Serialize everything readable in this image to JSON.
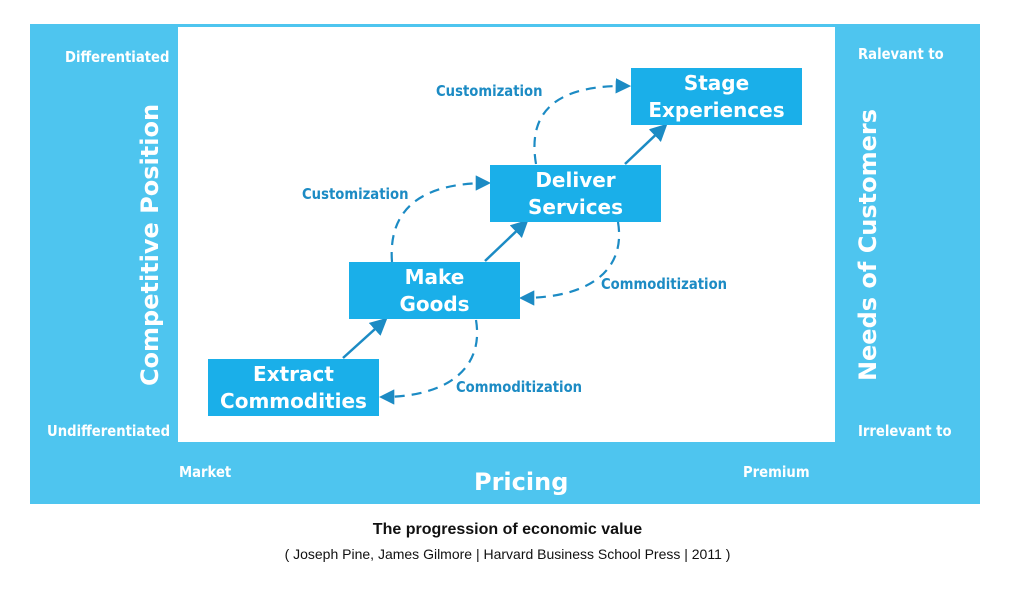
{
  "left_axis": {
    "top_label": "Differentiated",
    "bottom_label": "Undifferentiated",
    "title": "Competitive Position"
  },
  "right_axis": {
    "top_label": "Ralevant to",
    "bottom_label": "Irrelevant to",
    "title": "Needs of Customers"
  },
  "bottom_axis": {
    "left_label": "Market",
    "right_label": "Premium",
    "title": "Pricing"
  },
  "stages": {
    "commodities": {
      "line1": "Extract",
      "line2": "Commodities"
    },
    "goods": {
      "line1": "Make",
      "line2": "Goods"
    },
    "services": {
      "line1": "Deliver",
      "line2": "Services"
    },
    "experiences": {
      "line1": "Stage",
      "line2": "Experiences"
    }
  },
  "transitions": {
    "customization_upper": "Customization",
    "customization_lower": "Customization",
    "commoditization_upper": "Commoditization",
    "commoditization_lower": "Commoditization"
  },
  "colors": {
    "frame": "#4ec5ef",
    "box": "#1aafe9",
    "arrow": "#1c8bc4"
  },
  "caption": {
    "title": "The progression of economic value",
    "source": "( Joseph Pine, James Gilmore | Harvard Business School Press | 2011 )"
  }
}
